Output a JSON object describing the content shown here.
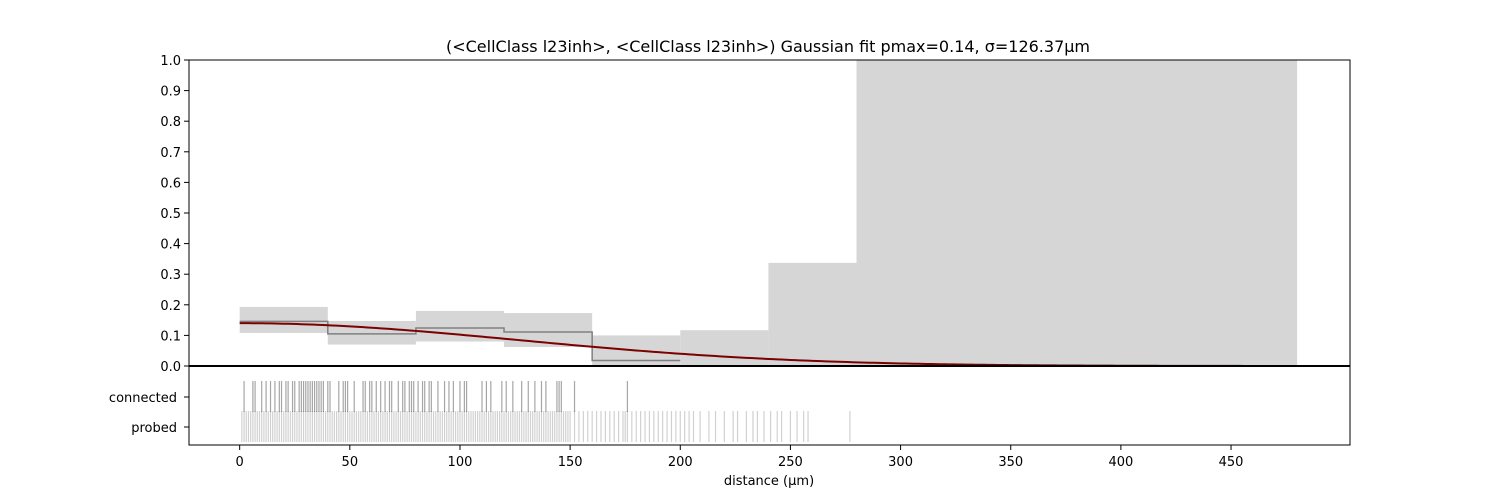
{
  "chart_data": {
    "type": "area",
    "title": "(<CellClass l23inh>, <CellClass l23inh>) Gaussian fit pmax=0.14, σ=126.37μm",
    "xlabel": "distance (μm)",
    "ylabel": "",
    "xlim": [
      -23,
      504
    ],
    "ylim": [
      0,
      1
    ],
    "x_ticks": [
      "0",
      "50",
      "100",
      "150",
      "200",
      "250",
      "300",
      "350",
      "400",
      "450"
    ],
    "x_tick_values": [
      0,
      50,
      100,
      150,
      200,
      250,
      300,
      350,
      400,
      450
    ],
    "y_ticks": [
      "0.0",
      "0.1",
      "0.2",
      "0.3",
      "0.4",
      "0.5",
      "0.6",
      "0.7",
      "0.8",
      "0.9",
      "1.0"
    ],
    "y_tick_values": [
      0,
      0.1,
      0.2,
      0.3,
      0.4,
      0.5,
      0.6,
      0.7,
      0.8,
      0.9,
      1.0
    ],
    "bin_edges": [
      0,
      40,
      80,
      120,
      160,
      200,
      240,
      280,
      480
    ],
    "connection_probability": [
      0.146,
      0.105,
      0.124,
      0.111,
      0.018,
      0,
      0,
      0
    ],
    "confidence_interval_lower": [
      0.108,
      0.07,
      0.08,
      0.062,
      0,
      0,
      0,
      0
    ],
    "confidence_interval_upper": [
      0.193,
      0.147,
      0.18,
      0.173,
      0.1,
      0.117,
      0.337,
      1.0
    ],
    "gaussian_fit": {
      "pmax": 0.14,
      "sigma": 126.37,
      "x_range": [
        0,
        480
      ],
      "color": "#7b0000"
    },
    "colors": {
      "ci_fill": "#d6d6d6",
      "step_line": "#808080",
      "fit_line": "#7b0000"
    },
    "grid": false,
    "raster": {
      "y_labels": [
        "connected",
        "probed"
      ],
      "connected_x": [
        2,
        6,
        7,
        10,
        12,
        14,
        16,
        18,
        19,
        21,
        22,
        24,
        25,
        27,
        28,
        29,
        30,
        31,
        32,
        33,
        34,
        35,
        36,
        37,
        38,
        40,
        41,
        45,
        47,
        48,
        49,
        52,
        56,
        57,
        59,
        60,
        62,
        64,
        66,
        68,
        69,
        72,
        74,
        75,
        77,
        78,
        79,
        81,
        83,
        84,
        86,
        87,
        90,
        93,
        95,
        97,
        100,
        102,
        103,
        110,
        112,
        114,
        119,
        121,
        124,
        128,
        131,
        134,
        137,
        139,
        144,
        145,
        146,
        152,
        176
      ],
      "probed_x": [
        1,
        2,
        3,
        4,
        5,
        6,
        7,
        8,
        9,
        10,
        11,
        12,
        13,
        14,
        15,
        16,
        17,
        18,
        19,
        20,
        21,
        22,
        23,
        24,
        25,
        26,
        27,
        28,
        29,
        30,
        31,
        32,
        33,
        34,
        35,
        36,
        37,
        38,
        39,
        40,
        41,
        42,
        43,
        44,
        45,
        46,
        47,
        48,
        49,
        50,
        51,
        52,
        53,
        54,
        55,
        56,
        57,
        58,
        59,
        60,
        61,
        62,
        63,
        64,
        65,
        66,
        67,
        68,
        69,
        70,
        71,
        72,
        73,
        74,
        75,
        76,
        77,
        78,
        79,
        80,
        81,
        82,
        83,
        84,
        85,
        86,
        87,
        88,
        89,
        90,
        91,
        92,
        93,
        94,
        95,
        96,
        97,
        98,
        99,
        100,
        101,
        102,
        103,
        104,
        105,
        106,
        107,
        108,
        109,
        110,
        111,
        112,
        113,
        114,
        115,
        116,
        117,
        118,
        119,
        120,
        121,
        122,
        123,
        124,
        125,
        126,
        127,
        128,
        129,
        130,
        131,
        132,
        133,
        134,
        135,
        136,
        137,
        138,
        139,
        140,
        141,
        142,
        143,
        144,
        145,
        146,
        147,
        148,
        149,
        150,
        152,
        154,
        156,
        158,
        160,
        162,
        164,
        166,
        168,
        170,
        172,
        174,
        175,
        176,
        178,
        180,
        182,
        184,
        186,
        188,
        190,
        192,
        194,
        196,
        198,
        200,
        202,
        204,
        206,
        209,
        213,
        216,
        220,
        224,
        226,
        230,
        233,
        235,
        238,
        241,
        244,
        246,
        250,
        253,
        256,
        258,
        277
      ]
    }
  }
}
